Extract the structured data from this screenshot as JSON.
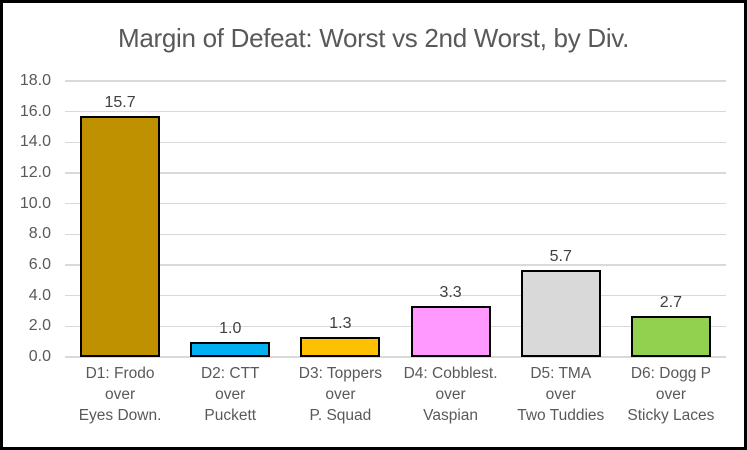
{
  "colors": {
    "frame_border": "#000000",
    "background": "#FFFFFF",
    "title_text": "#595959",
    "axis_text": "#595959",
    "data_label_text": "#404040",
    "gridline": "#D9D9D9",
    "bar_outline": "#000000"
  },
  "chart_data": {
    "type": "bar",
    "title": "Margin of Defeat: Worst vs 2nd Worst, by Div.",
    "categories": [
      [
        "D1: Frodo",
        "over",
        "Eyes Down."
      ],
      [
        "D2: CTT",
        "over",
        "Puckett"
      ],
      [
        "D3: Toppers",
        "over",
        "P. Squad"
      ],
      [
        "D4: Cobblest.",
        "over",
        "Vaspian"
      ],
      [
        "D5: TMA",
        "over",
        "Two Tuddies"
      ],
      [
        "D6: Dogg P",
        "over",
        "Sticky Laces"
      ]
    ],
    "values": [
      15.7,
      1.0,
      1.3,
      3.3,
      5.7,
      2.7
    ],
    "data_labels": [
      "15.7",
      "1.0",
      "1.3",
      "3.3",
      "5.7",
      "2.7"
    ],
    "bar_colors": [
      "#BF9000",
      "#00B0F0",
      "#FFC000",
      "#FF99FF",
      "#D9D9D9",
      "#92D050"
    ],
    "ylim": [
      0,
      18
    ],
    "ytick_step": 2,
    "ytick_labels": [
      "0.0",
      "2.0",
      "4.0",
      "6.0",
      "8.0",
      "10.0",
      "12.0",
      "14.0",
      "16.0",
      "18.0"
    ],
    "xlabel": "",
    "ylabel": "",
    "grid": true,
    "legend": "none"
  }
}
